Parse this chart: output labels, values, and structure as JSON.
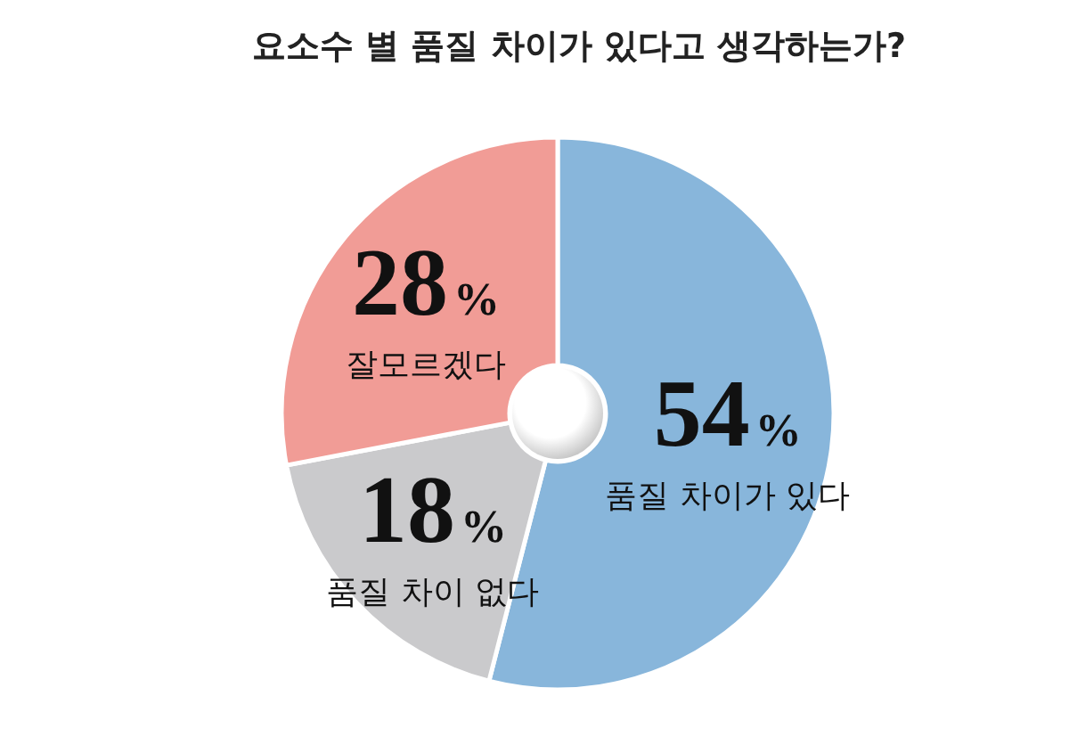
{
  "chart_data": {
    "type": "donut",
    "title": "요소수 별 품질 차이가 있다고 생각하는가?",
    "categories": [
      "품질 차이가 있다",
      "품질 차이 없다",
      "잘모르겠다"
    ],
    "values": [
      54,
      18,
      28
    ],
    "colors": [
      "#88b6db",
      "#cacacc",
      "#f19c96"
    ],
    "value_labels": [
      "54%",
      "18%",
      "28%"
    ]
  }
}
